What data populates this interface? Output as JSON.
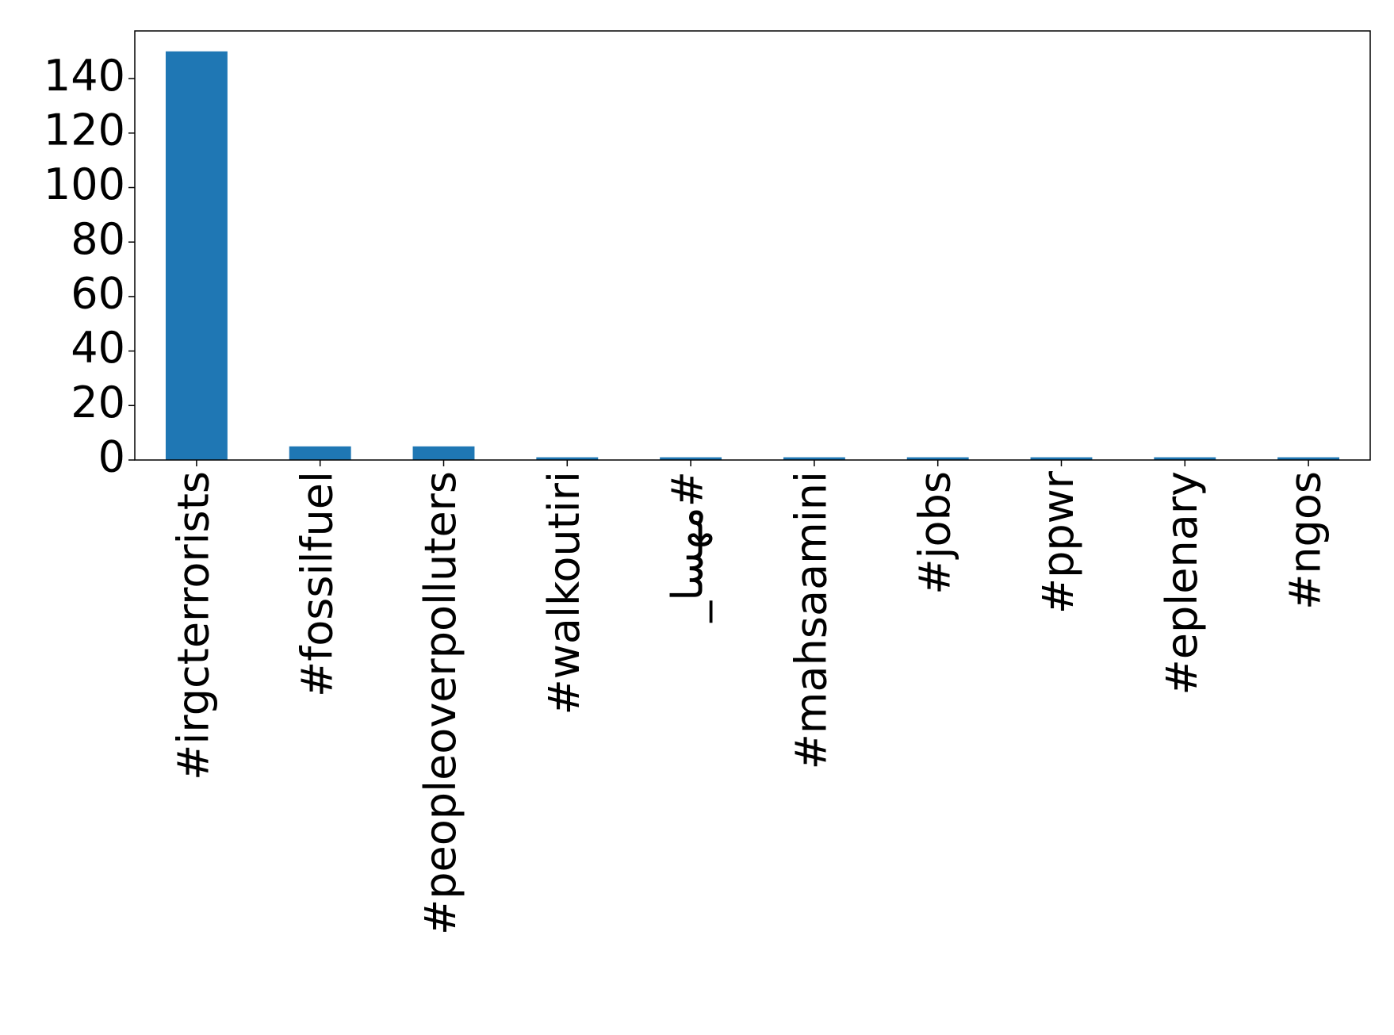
{
  "chart_data": {
    "type": "bar",
    "categories": [
      "#irgcterrorists",
      "#fossilfuel",
      "#peopleoverpolluters",
      "#walkoutiri",
      "#مهسا_",
      "#mahsaamini",
      "#jobs",
      "#ppwr",
      "#eplenary",
      "#ngos"
    ],
    "values": [
      150,
      5,
      5,
      1,
      1,
      1,
      1,
      1,
      1,
      1
    ],
    "color": "#1f77b4",
    "ylim": [
      0,
      157.5
    ],
    "yticks": [
      0,
      20,
      40,
      60,
      80,
      100,
      120,
      140
    ],
    "grid": false
  }
}
